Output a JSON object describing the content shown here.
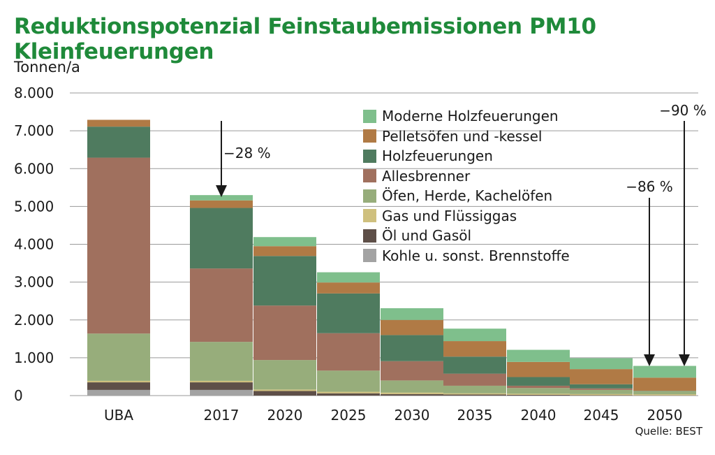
{
  "title": "Reduktionspotenzial Feinstaubemissionen PM10 Kleinfeuerungen",
  "unit_label": "Tonnen/a",
  "source": "Quelle: BEST",
  "chart_data": {
    "type": "bar",
    "stacked": true,
    "title": "Reduktionspotenzial Feinstaubemissionen PM10 Kleinfeuerungen",
    "ylabel": "Tonnen/a",
    "xlabel": "",
    "ylim": [
      0,
      8000
    ],
    "yticks": [
      0,
      1000,
      2000,
      3000,
      4000,
      5000,
      6000,
      7000,
      8000
    ],
    "ytick_labels": [
      "0",
      "1.000",
      "2.000",
      "3.000",
      "4.000",
      "5.000",
      "6.000",
      "7.000",
      "8.000"
    ],
    "grid": "horizontal",
    "legend_position": "top-right",
    "categories": [
      "UBA",
      "2017",
      "2020",
      "2025",
      "2030",
      "2035",
      "2040",
      "2045",
      "2050"
    ],
    "series": [
      {
        "name": "Kohle u. sonst. Brennstoffe",
        "color": "#a3a3a3",
        "values": [
          150,
          150,
          0,
          0,
          0,
          0,
          0,
          0,
          0
        ]
      },
      {
        "name": "Öl und Gasöl",
        "color": "#5e4f48",
        "values": [
          200,
          200,
          120,
          60,
          40,
          30,
          20,
          10,
          5
        ]
      },
      {
        "name": "Gas und Flüssiggas",
        "color": "#cfc07e",
        "values": [
          40,
          40,
          40,
          40,
          40,
          30,
          30,
          30,
          30
        ]
      },
      {
        "name": "Öfen, Herde, Kachelöfen",
        "color": "#97ad7b",
        "values": [
          1250,
          1030,
          780,
          560,
          320,
          200,
          150,
          110,
          80
        ]
      },
      {
        "name": "Allesbrenner",
        "color": "#a0705e",
        "values": [
          4650,
          1940,
          1440,
          990,
          510,
          320,
          60,
          40,
          0
        ]
      },
      {
        "name": "Holzfeuerungen",
        "color": "#4f7b5f",
        "values": [
          820,
          1600,
          1310,
          1050,
          690,
          450,
          230,
          110,
          10
        ]
      },
      {
        "name": "Pelletsöfen und -kessel",
        "color": "#b07a45",
        "values": [
          180,
          200,
          260,
          290,
          400,
          410,
          400,
          400,
          350
        ]
      },
      {
        "name": "Moderne Holzfeuerungen",
        "color": "#7fbf8c",
        "values": [
          0,
          140,
          240,
          270,
          310,
          330,
          320,
          290,
          310
        ]
      }
    ],
    "annotations": [
      {
        "text": "−28 %",
        "category": "2017"
      },
      {
        "text": "−86 %",
        "category": "2050"
      },
      {
        "text": "−90 %",
        "category": "2050"
      }
    ]
  }
}
